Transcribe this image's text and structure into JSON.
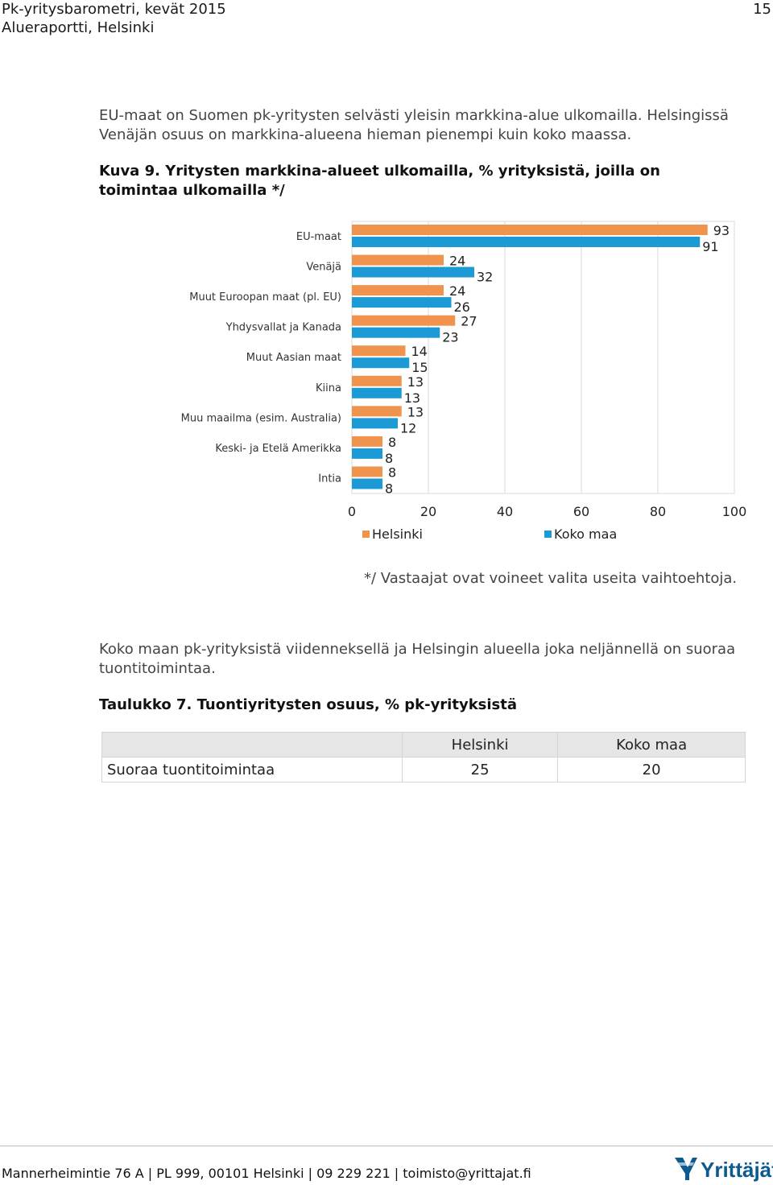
{
  "header": {
    "title": "Pk-yritysbarometri, kevät 2015",
    "subtitle": "Alueraportti, Helsinki",
    "page_number": "15"
  },
  "intro": "EU-maat on Suomen pk-yritysten selvästi yleisin markkina-alue ulkomailla. Helsingissä Venäjän osuus on markkina-alueena hieman pienempi kuin koko maassa.",
  "figure_caption": "Kuva 9. Yritysten markkina-alueet ulkomailla, % yrityksistä, joilla on toimintaa ulkomailla */",
  "chart_data": {
    "type": "bar",
    "orientation": "horizontal",
    "categories": [
      "EU-maat",
      "Venäjä",
      "Muut Euroopan maat (pl. EU)",
      "Yhdysvallat ja Kanada",
      "Muut Aasian maat",
      "Kiina",
      "Muu maailma (esim. Australia)",
      "Keski- ja Etelä Amerikka",
      "Intia"
    ],
    "series": [
      {
        "name": "Helsinki",
        "color": "#f0944d",
        "values": [
          93,
          24,
          24,
          27,
          14,
          13,
          13,
          8,
          8
        ]
      },
      {
        "name": "Koko maa",
        "color": "#1b9ad6",
        "values": [
          91,
          32,
          26,
          23,
          15,
          13,
          12,
          8,
          8
        ]
      }
    ],
    "xlim": [
      0,
      100
    ],
    "xticks": [
      "0",
      "20",
      "40",
      "60",
      "80",
      "100"
    ],
    "grid": true,
    "legend": "bottom",
    "data_labels": true
  },
  "footnote": "*/ Vastaajat ovat voineet valita useita vaihtoehtoja.",
  "para2": "Koko maan pk-yrityksistä viidenneksellä ja Helsingin alueella joka neljännellä on suoraa tuontitoimintaa.",
  "table_caption": "Taulukko 7. Tuontiyritysten osuus, % pk-yrityksistä",
  "table": {
    "headers": [
      "",
      "Helsinki",
      "Koko maa"
    ],
    "rows": [
      [
        "Suoraa tuontitoimintaa",
        "25",
        "20"
      ]
    ]
  },
  "footer": "Mannerheimintie 76 A | PL 999, 00101 Helsinki | 09 229 221 | toimisto@yrittajat.fi",
  "logo_text": "Yrittäjät"
}
